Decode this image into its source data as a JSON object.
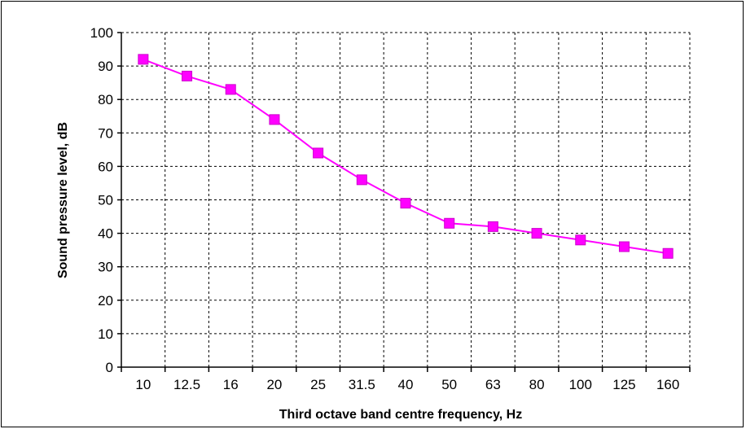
{
  "chart_data": {
    "type": "line",
    "xlabel": "Third octave band centre frequency, Hz",
    "ylabel": "Sound pressure level, dB",
    "categories": [
      "10",
      "12.5",
      "16",
      "20",
      "25",
      "31.5",
      "40",
      "50",
      "63",
      "80",
      "100",
      "125",
      "160"
    ],
    "series": [
      {
        "values": [
          92,
          87,
          83,
          74,
          64,
          56,
          49,
          43,
          42,
          40,
          38,
          36,
          34
        ]
      }
    ],
    "ylim": [
      0,
      100
    ],
    "yticks": [
      "0",
      "10",
      "20",
      "30",
      "40",
      "50",
      "60",
      "70",
      "80",
      "90",
      "100"
    ],
    "grid": true,
    "legend": "none",
    "colors": {
      "series": "#ff00ff",
      "marker_stroke": "#cc00cc",
      "grid": "#000000",
      "axis": "#000000"
    },
    "marker": "square"
  }
}
